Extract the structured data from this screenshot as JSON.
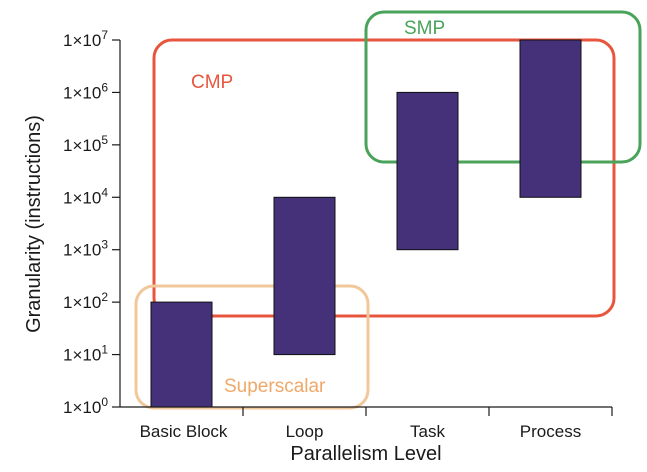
{
  "chart_data": {
    "type": "bar",
    "subtype": "floating-range",
    "title": "",
    "xlabel": "Parallelism Level",
    "ylabel": "Granularity (instructions)",
    "yscale": "log",
    "ylim": [
      1,
      10000000
    ],
    "grid": false,
    "categories": [
      "Basic Block",
      "Loop",
      "Task",
      "Process"
    ],
    "ranges": [
      {
        "category": "Basic Block",
        "low": 1,
        "high": 100
      },
      {
        "category": "Loop",
        "low": 10,
        "high": 10000
      },
      {
        "category": "Task",
        "low": 1000,
        "high": 1000000
      },
      {
        "category": "Process",
        "low": 10000,
        "high": 10000000
      }
    ],
    "bar_color": "#45307a",
    "y_ticks": [
      {
        "base": "1×10",
        "exp": "0",
        "value": 1
      },
      {
        "base": "1×10",
        "exp": "1",
        "value": 10
      },
      {
        "base": "1×10",
        "exp": "2",
        "value": 100
      },
      {
        "base": "1×10",
        "exp": "3",
        "value": 1000
      },
      {
        "base": "1×10",
        "exp": "4",
        "value": 10000
      },
      {
        "base": "1×10",
        "exp": "5",
        "value": 100000
      },
      {
        "base": "1×10",
        "exp": "6",
        "value": 1000000
      },
      {
        "base": "1×10",
        "exp": "7",
        "value": 10000000
      }
    ],
    "regions": [
      {
        "label": "CMP",
        "color": "#e8553d",
        "x_from": "Basic Block",
        "x_to": "Process",
        "y_low": 50,
        "y_high": 10000000
      },
      {
        "label": "SMP",
        "color": "#4aa35a",
        "x_from": "Task",
        "x_to": "Process",
        "y_low": 50000,
        "y_high": 10000000
      },
      {
        "label": "Superscalar",
        "color": "#f2c79a",
        "x_from": "Basic Block",
        "x_to": "Loop",
        "y_low": 1,
        "y_high": 100
      }
    ]
  }
}
